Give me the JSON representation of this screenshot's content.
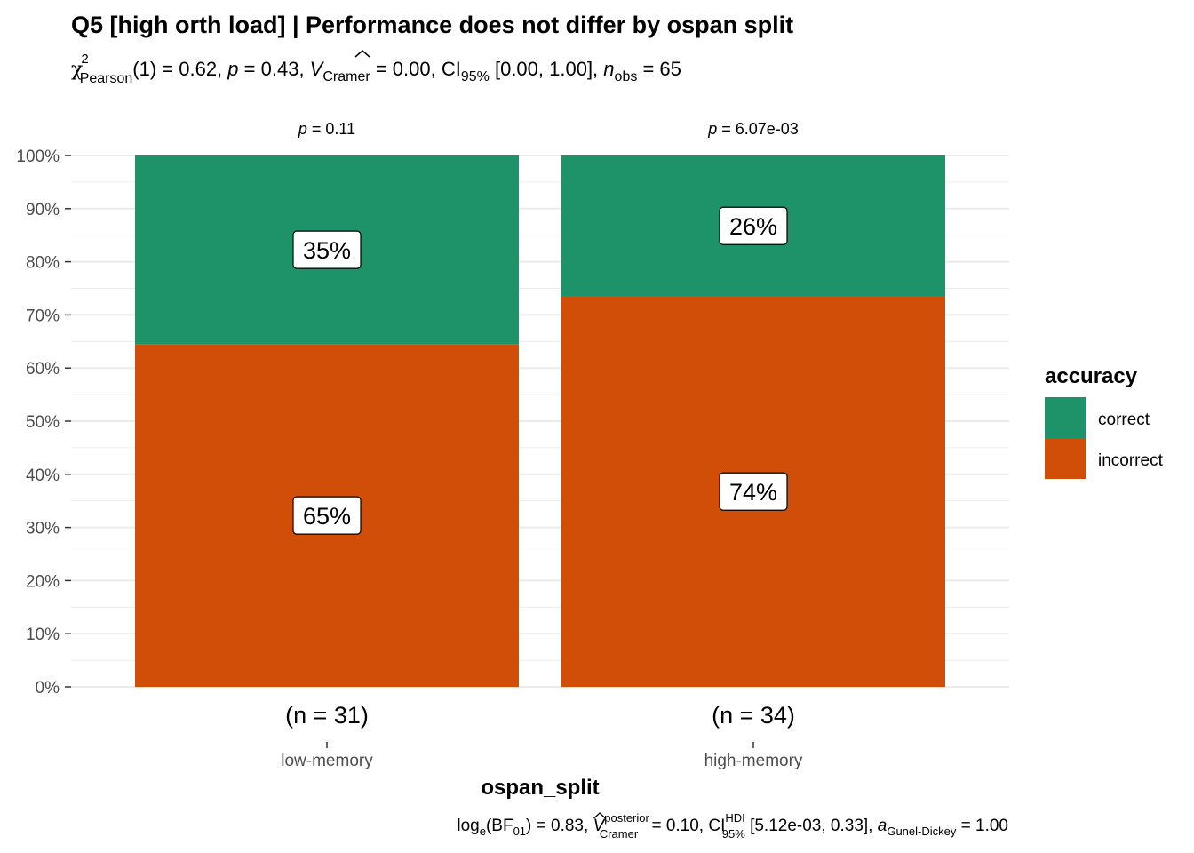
{
  "chart_data": {
    "type": "bar",
    "stacked": true,
    "title": "Q5 [high orth load] | Performance does not differ by ospan split",
    "subtitle": {
      "chi_symbol": "χ",
      "chi_sup": "2",
      "chi_sub": "Pearson",
      "stat_text": "(1) = 0.62, ",
      "p_symbol": "p",
      "p_text": " = 0.43, ",
      "v_symbol": "V",
      "v_sub": "Cramer",
      "v_text": " = 0.00, CI",
      "ci_sub": "95%",
      "ci_text": " [0.00, 1.00], ",
      "n_symbol": "n",
      "n_sub": "obs",
      "n_text": " = 65"
    },
    "xlabel": "ospan_split",
    "ylabel": "",
    "ylim": [
      0,
      100
    ],
    "yticks": [
      "0%",
      "10%",
      "20%",
      "30%",
      "40%",
      "50%",
      "60%",
      "70%",
      "80%",
      "90%",
      "100%"
    ],
    "categories": [
      "low-memory",
      "high-memory"
    ],
    "n_labels": [
      "(n = 31)",
      "(n = 34)"
    ],
    "facet_p": [
      {
        "symbol": "p",
        "text": " = 0.11"
      },
      {
        "symbol": "p",
        "text": " = 6.07e-03"
      }
    ],
    "series": [
      {
        "name": "incorrect",
        "color": "#D04E07",
        "values": [
          64.5,
          73.5
        ],
        "labels": [
          "65%",
          "74%"
        ]
      },
      {
        "name": "correct",
        "color": "#1E9269",
        "values": [
          35.5,
          26.5
        ],
        "labels": [
          "35%",
          "26%"
        ]
      }
    ],
    "legend": {
      "title": "accuracy",
      "position": "right",
      "items": [
        {
          "label": "correct",
          "color": "#1E9269"
        },
        {
          "label": "incorrect",
          "color": "#D04E07"
        }
      ]
    },
    "grid": true,
    "caption": {
      "log_text": "log",
      "log_sub": "e",
      "bf_text": "(BF",
      "bf_sub": "01",
      "bf_val": ") = 0.83, ",
      "v_symbol": "V",
      "v_sup": "posterior",
      "v_sub": "Cramer",
      "v_val": " = 0.10, CI",
      "ci_sup": "HDI",
      "ci_sub": "95%",
      "ci_val": " [5.12e-03, 0.33], ",
      "a_symbol": "a",
      "a_sub": "Gunel-Dickey",
      "a_val": " = 1.00"
    }
  }
}
